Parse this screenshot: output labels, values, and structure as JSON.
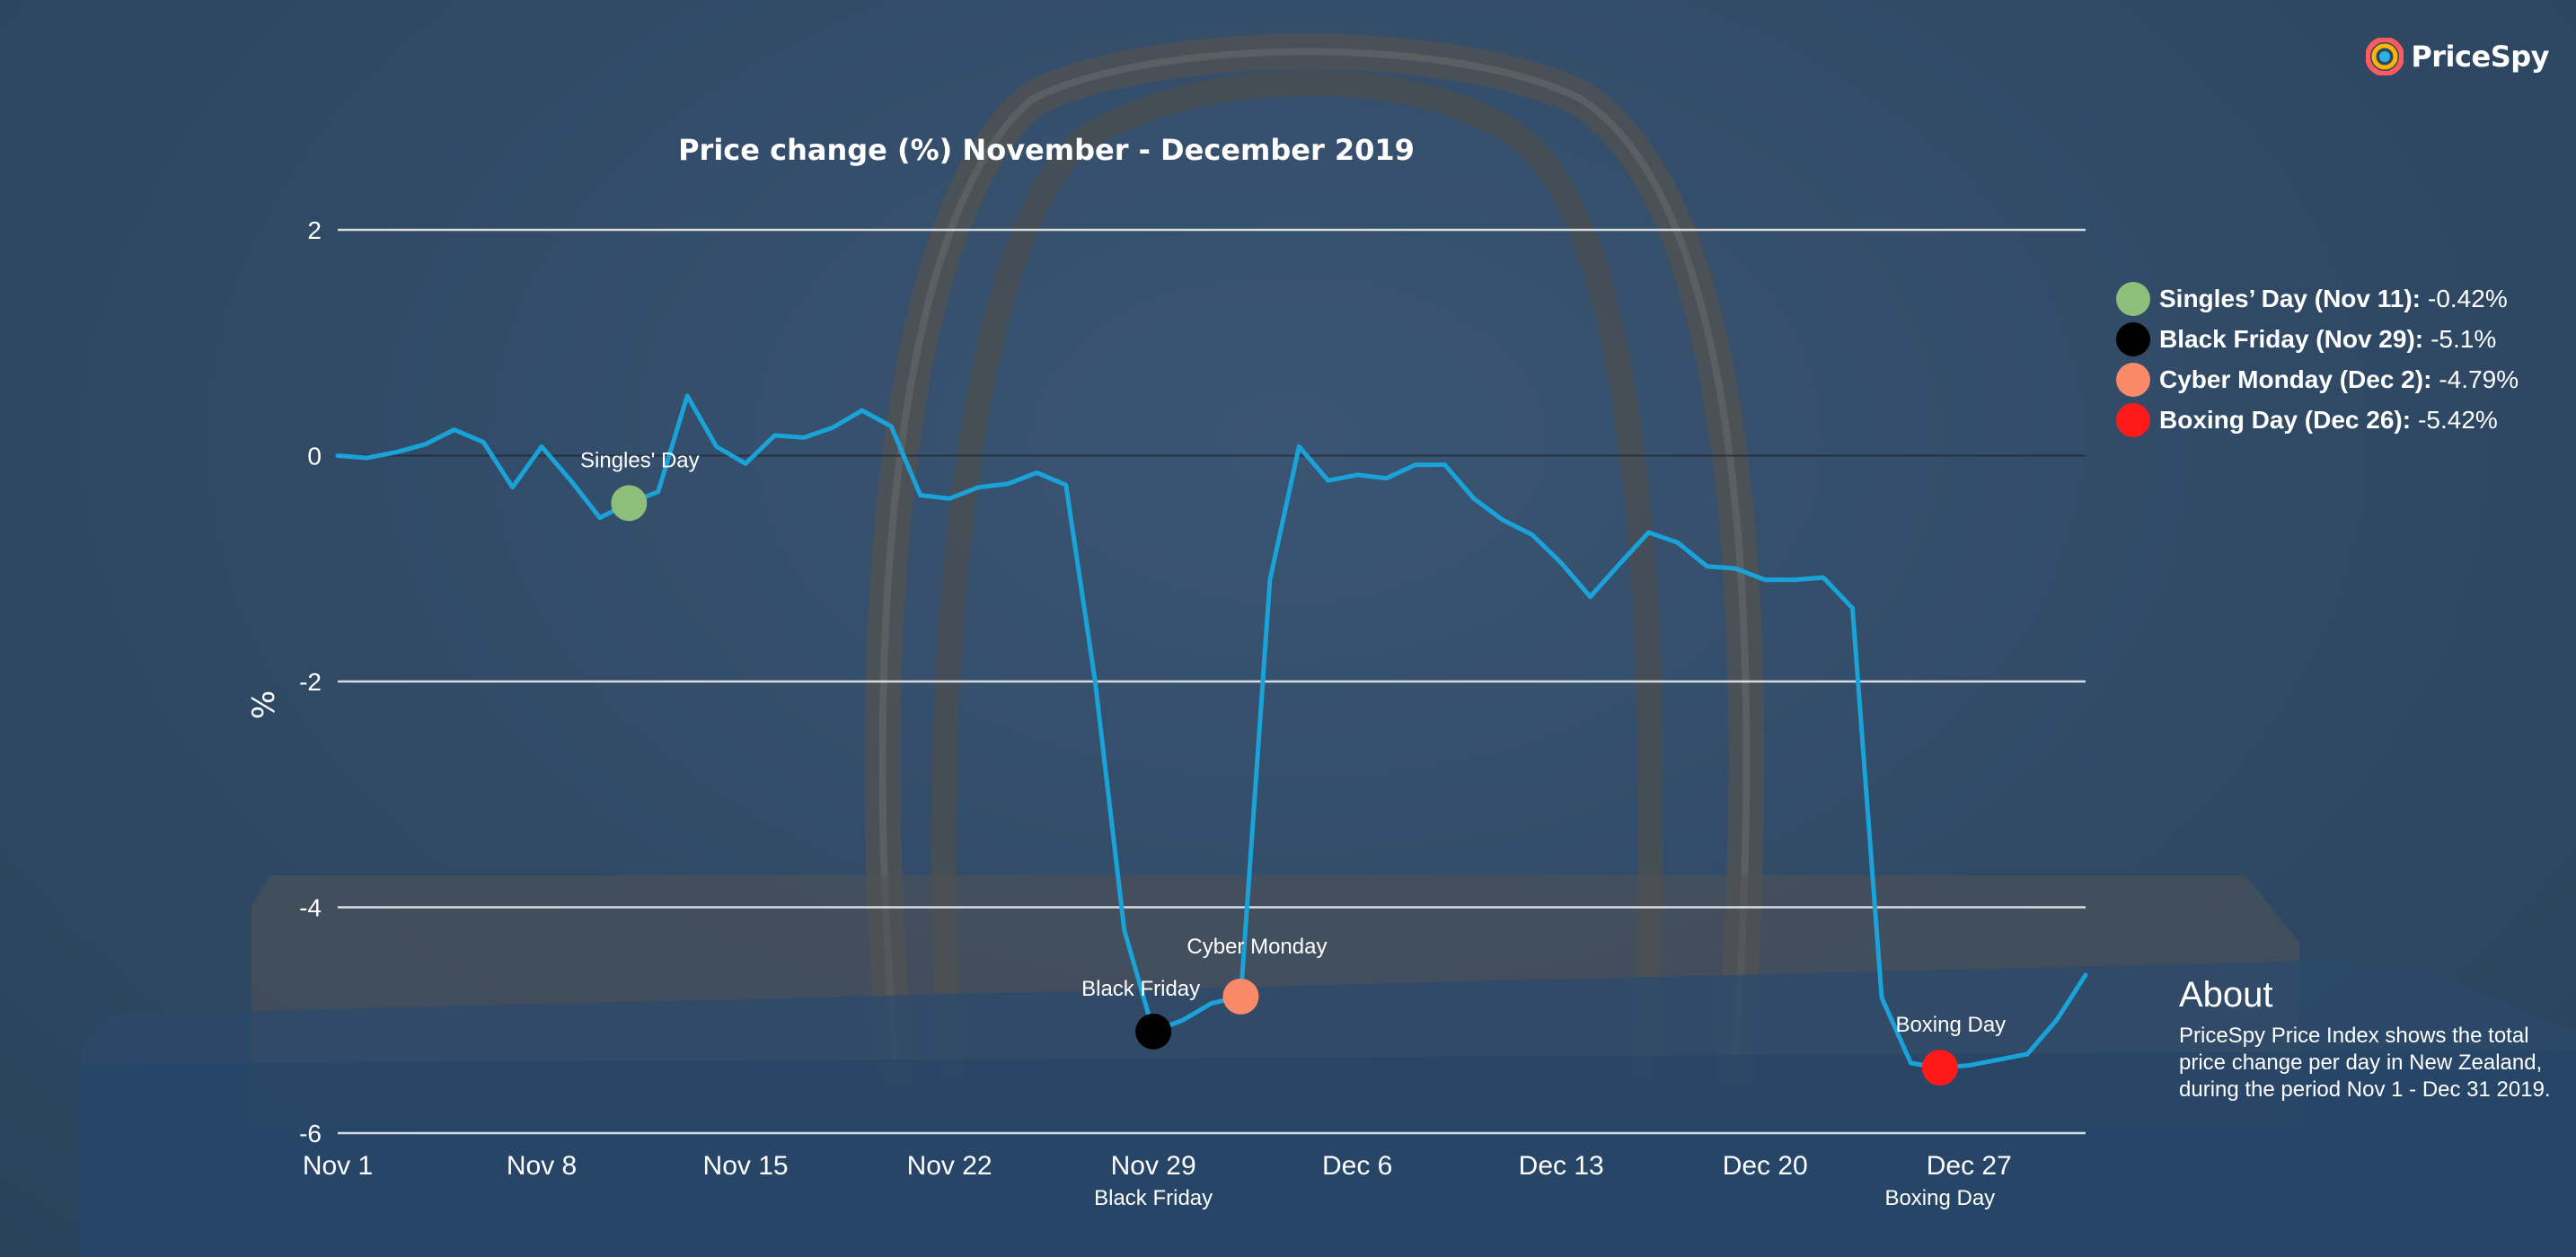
{
  "brand": {
    "logo_text": "PriceSpy"
  },
  "chart_data": {
    "type": "line",
    "title": "Price change (%) November - December 2019",
    "ylabel": "%",
    "xlabel": "",
    "ylim": [
      -6,
      2
    ],
    "yticks": [
      2,
      0,
      -2,
      -4,
      -6
    ],
    "grid": true,
    "legend_position": "right",
    "line_color": "#1aa3d9",
    "x_ticks": [
      "Nov 1",
      "Nov 8",
      "Nov 15",
      "Nov 22",
      "Nov 29",
      "Dec 6",
      "Dec 13",
      "Dec 20",
      "Dec 27"
    ],
    "x_sublabels": [
      {
        "date": "Nov 29",
        "text": "Black Friday"
      },
      {
        "date": "Dec 26",
        "text": "Boxing Day"
      }
    ],
    "x": [
      "Nov 1",
      "Nov 2",
      "Nov 3",
      "Nov 4",
      "Nov 5",
      "Nov 6",
      "Nov 7",
      "Nov 8",
      "Nov 9",
      "Nov 10",
      "Nov 11",
      "Nov 12",
      "Nov 13",
      "Nov 14",
      "Nov 15",
      "Nov 16",
      "Nov 17",
      "Nov 18",
      "Nov 19",
      "Nov 20",
      "Nov 21",
      "Nov 22",
      "Nov 23",
      "Nov 24",
      "Nov 25",
      "Nov 26",
      "Nov 27",
      "Nov 28",
      "Nov 29",
      "Nov 30",
      "Dec 1",
      "Dec 2",
      "Dec 3",
      "Dec 4",
      "Dec 5",
      "Dec 6",
      "Dec 7",
      "Dec 8",
      "Dec 9",
      "Dec 10",
      "Dec 11",
      "Dec 12",
      "Dec 13",
      "Dec 14",
      "Dec 15",
      "Dec 16",
      "Dec 17",
      "Dec 18",
      "Dec 19",
      "Dec 20",
      "Dec 21",
      "Dec 22",
      "Dec 23",
      "Dec 24",
      "Dec 25",
      "Dec 26",
      "Dec 27",
      "Dec 28",
      "Dec 29",
      "Dec 30",
      "Dec 31"
    ],
    "series": [
      {
        "values": [
          0.0,
          -0.02,
          0.03,
          0.1,
          0.23,
          0.12,
          -0.28,
          0.08,
          -0.22,
          -0.55,
          -0.42,
          -0.32,
          0.53,
          0.08,
          -0.07,
          0.18,
          0.16,
          0.25,
          0.4,
          0.26,
          -0.35,
          -0.38,
          -0.28,
          -0.25,
          -0.15,
          -0.26,
          -2.0,
          -4.2,
          -5.1,
          -5.0,
          -4.85,
          -4.79,
          -1.1,
          0.08,
          -0.22,
          -0.17,
          -0.2,
          -0.08,
          -0.08,
          -0.38,
          -0.57,
          -0.7,
          -0.95,
          -1.25,
          -0.96,
          -0.68,
          -0.77,
          -0.98,
          -1.0,
          -1.1,
          -1.1,
          -1.08,
          -1.35,
          -4.8,
          -5.38,
          -5.42,
          -5.4,
          -5.35,
          -5.3,
          -5.0,
          -4.6
        ]
      }
    ],
    "highlights": [
      {
        "index": 10,
        "label": "Singles' Day",
        "color": "#8cc07a"
      },
      {
        "index": 28,
        "label": "Black Friday",
        "color": "#000000"
      },
      {
        "index": 31,
        "label": "Cyber Monday",
        "color": "#f88a6a"
      },
      {
        "index": 55,
        "label": "Boxing Day",
        "color": "#ff1a1a"
      }
    ]
  },
  "legend": {
    "items": [
      {
        "label": "Singles’ Day (Nov 11):",
        "value": "-0.42%",
        "color": "#8cc07a"
      },
      {
        "label": "Black Friday (Nov 29):",
        "value": "-5.1%",
        "color": "#000000"
      },
      {
        "label": "Cyber Monday (Dec 2):",
        "value": "-4.79%",
        "color": "#f88a6a"
      },
      {
        "label": "Boxing Day (Dec 26):",
        "value": "-5.42%",
        "color": "#ff1a1a"
      }
    ]
  },
  "about": {
    "title": "About",
    "text": "PriceSpy Price Index shows the total price change per day in New Zealand, during the period Nov 1 - Dec 31 2019."
  }
}
